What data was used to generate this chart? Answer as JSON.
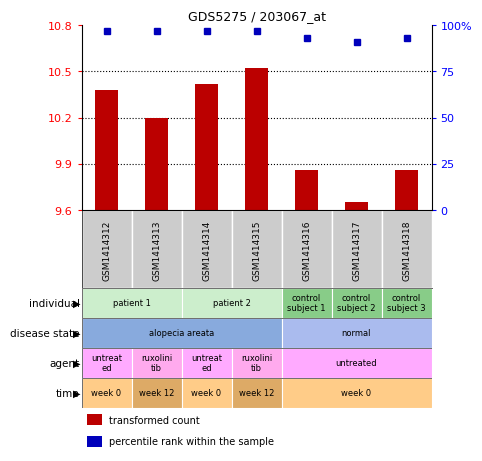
{
  "title": "GDS5275 / 203067_at",
  "samples": [
    "GSM1414312",
    "GSM1414313",
    "GSM1414314",
    "GSM1414315",
    "GSM1414316",
    "GSM1414317",
    "GSM1414318"
  ],
  "transformed_counts": [
    10.38,
    10.2,
    10.42,
    10.52,
    9.86,
    9.65,
    9.86
  ],
  "percentile_ranks": [
    97,
    97,
    97,
    97,
    93,
    91,
    93
  ],
  "ylim": [
    9.6,
    10.8
  ],
  "yticks_left": [
    9.6,
    9.9,
    10.2,
    10.5,
    10.8
  ],
  "yticks_right": [
    0,
    25,
    50,
    75,
    100
  ],
  "ytick_right_labels": [
    "0",
    "25",
    "50",
    "75",
    "100%"
  ],
  "bar_color": "#bb0000",
  "dot_color": "#0000bb",
  "meta_info": {
    "individual": [
      {
        "label": "patient 1",
        "span": [
          0,
          2
        ],
        "color": "#cceecc"
      },
      {
        "label": "patient 2",
        "span": [
          2,
          4
        ],
        "color": "#cceecc"
      },
      {
        "label": "control\nsubject 1",
        "span": [
          4,
          5
        ],
        "color": "#88cc88"
      },
      {
        "label": "control\nsubject 2",
        "span": [
          5,
          6
        ],
        "color": "#88cc88"
      },
      {
        "label": "control\nsubject 3",
        "span": [
          6,
          7
        ],
        "color": "#88cc88"
      }
    ],
    "disease_state": [
      {
        "label": "alopecia areata",
        "span": [
          0,
          4
        ],
        "color": "#88aadd"
      },
      {
        "label": "normal",
        "span": [
          4,
          7
        ],
        "color": "#aabbee"
      }
    ],
    "agent": [
      {
        "label": "untreat\ned",
        "span": [
          0,
          1
        ],
        "color": "#ffaaff"
      },
      {
        "label": "ruxolini\ntib",
        "span": [
          1,
          2
        ],
        "color": "#ffaaee"
      },
      {
        "label": "untreat\ned",
        "span": [
          2,
          3
        ],
        "color": "#ffaaff"
      },
      {
        "label": "ruxolini\ntib",
        "span": [
          3,
          4
        ],
        "color": "#ffaaee"
      },
      {
        "label": "untreated",
        "span": [
          4,
          7
        ],
        "color": "#ffaaff"
      }
    ],
    "time": [
      {
        "label": "week 0",
        "span": [
          0,
          1
        ],
        "color": "#ffcc88"
      },
      {
        "label": "week 12",
        "span": [
          1,
          2
        ],
        "color": "#ddaa66"
      },
      {
        "label": "week 0",
        "span": [
          2,
          3
        ],
        "color": "#ffcc88"
      },
      {
        "label": "week 12",
        "span": [
          3,
          4
        ],
        "color": "#ddaa66"
      },
      {
        "label": "week 0",
        "span": [
          4,
          7
        ],
        "color": "#ffcc88"
      }
    ]
  },
  "row_labels": [
    "individual",
    "disease state",
    "agent",
    "time"
  ],
  "meta_keys": [
    "individual",
    "disease_state",
    "agent",
    "time"
  ],
  "sample_bg_color": "#cccccc",
  "legend_items": [
    {
      "color": "#bb0000",
      "label": "transformed count"
    },
    {
      "color": "#0000bb",
      "label": "percentile rank within the sample"
    }
  ]
}
